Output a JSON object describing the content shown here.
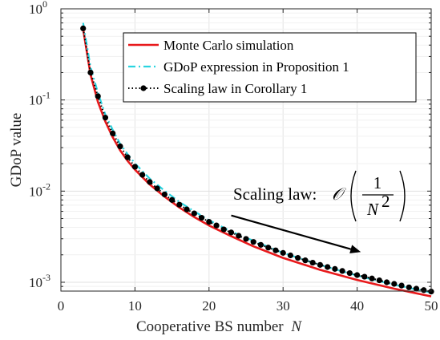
{
  "chart_data": {
    "type": "line",
    "xlabel": "Cooperative BS number",
    "xlabel_var": "N",
    "ylabel": "GDoP value",
    "xlim": [
      0,
      50
    ],
    "ylim": [
      0.0008,
      1.0
    ],
    "yscale": "log",
    "grid": true,
    "legend_position": "top-right",
    "x_ticks": [
      "0",
      "10",
      "20",
      "30",
      "40",
      "50"
    ],
    "y_ticks": [
      {
        "base": "10",
        "exp": "-3"
      },
      {
        "base": "10",
        "exp": "-2"
      },
      {
        "base": "10",
        "exp": "-1"
      },
      {
        "base": "10",
        "exp": "0"
      }
    ],
    "series": [
      {
        "name": "Monte Carlo simulation",
        "color": "#e8191b",
        "style": "solid",
        "x": [
          3,
          4,
          5,
          6,
          7,
          8,
          9,
          10,
          12,
          14,
          16,
          18,
          20,
          23,
          26,
          30,
          35,
          40,
          45,
          50
        ],
        "y": [
          0.6,
          0.19,
          0.095,
          0.058,
          0.039,
          0.028,
          0.0215,
          0.0172,
          0.0118,
          0.0087,
          0.0066,
          0.0052,
          0.0042,
          0.0032,
          0.00248,
          0.00185,
          0.00137,
          0.00106,
          0.00085,
          0.0007
        ]
      },
      {
        "name": "GDoP expression in Proposition 1",
        "color": "#2ad4e0",
        "style": "dashdot",
        "x": [
          3,
          4,
          5,
          6,
          7,
          8,
          9,
          10,
          12,
          14,
          16,
          18,
          20,
          23,
          26,
          30,
          35,
          40,
          45,
          50
        ],
        "y": [
          0.7,
          0.23,
          0.12,
          0.069,
          0.047,
          0.033,
          0.0255,
          0.0201,
          0.0137,
          0.0101,
          0.0076,
          0.006,
          0.0048,
          0.0036,
          0.00285,
          0.0021,
          0.00155,
          0.00118,
          0.00094,
          0.00077
        ]
      },
      {
        "name": "Scaling law in Corollary 1",
        "color": "#000000",
        "style": "dotted-marker",
        "x": [
          3,
          4,
          5,
          6,
          7,
          8,
          9,
          10,
          11,
          12,
          13,
          14,
          15,
          16,
          17,
          18,
          19,
          20,
          21,
          22,
          23,
          24,
          25,
          26,
          27,
          28,
          29,
          30,
          31,
          32,
          33,
          34,
          35,
          36,
          37,
          38,
          39,
          40,
          41,
          42,
          43,
          44,
          45,
          46,
          47,
          48,
          49,
          50
        ],
        "y": [
          0.61,
          0.2,
          0.11,
          0.064,
          0.043,
          0.031,
          0.0235,
          0.0185,
          0.0151,
          0.0126,
          0.0107,
          0.0092,
          0.008,
          0.0071,
          0.0063,
          0.0057,
          0.0051,
          0.0046,
          0.0042,
          0.0038,
          0.00352,
          0.00324,
          0.00299,
          0.00277,
          0.00257,
          0.0024,
          0.00224,
          0.0021,
          0.00197,
          0.00185,
          0.00174,
          0.00164,
          0.00155,
          0.00147,
          0.0014,
          0.00133,
          0.00126,
          0.0012,
          0.00115,
          0.0011,
          0.00105,
          0.001,
          0.00096,
          0.00092,
          0.00088,
          0.00085,
          0.00082,
          0.00079
        ]
      }
    ],
    "annotation": {
      "text": "Scaling law:",
      "symbol": "𝒪",
      "numerator": "1",
      "denominator_base": "N",
      "denominator_exp": "2",
      "arrow_from": [
        23,
        0.0054
      ],
      "arrow_to": [
        40.5,
        0.00215
      ]
    }
  }
}
